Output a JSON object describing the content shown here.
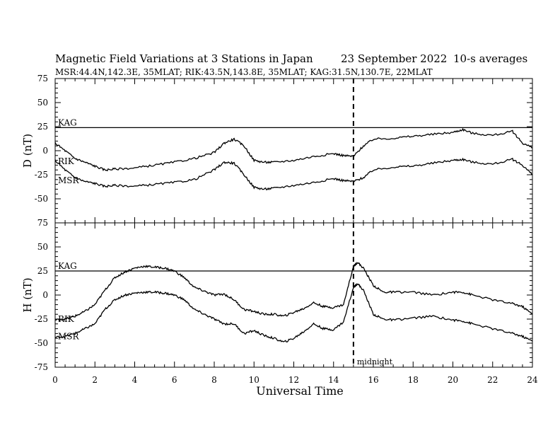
{
  "title": "Magnetic Field Variations at 3 Stations in Japan",
  "date_label": "23 September 2022",
  "avg_label": "10-s averages",
  "subtitle": "MSR:44.4N,142.3E, 35MLAT;  RIK:43.5N,143.8E, 35MLAT;  KAG:31.5N,130.7E, 22MLAT",
  "chart_data": [
    {
      "type": "line",
      "ylabel": "D (nT)",
      "ylim": [
        -75,
        75
      ],
      "yticks": [
        "75",
        "50",
        "25",
        "0",
        "-25",
        "-50",
        "-75"
      ],
      "xlim": [
        0,
        24
      ],
      "series": [
        {
          "name": "KAG",
          "x": [
            0,
            24
          ],
          "y": [
            24,
            24
          ]
        },
        {
          "name": "RIK",
          "x": [
            0,
            0.5,
            1,
            1.5,
            2,
            2.5,
            3,
            4,
            5,
            6,
            7,
            8,
            8.5,
            9,
            9.5,
            10,
            10.5,
            11,
            12,
            13,
            14,
            14.5,
            15,
            15.5,
            16,
            17,
            18,
            19,
            20,
            20.5,
            21,
            22,
            23,
            23.5,
            24
          ],
          "y": [
            8,
            0,
            -8,
            -12,
            -16,
            -20,
            -19,
            -18,
            -15,
            -12,
            -8,
            -2,
            8,
            12,
            5,
            -10,
            -12,
            -12,
            -10,
            -6,
            -3,
            -5,
            -6,
            5,
            12,
            13,
            15,
            17,
            19,
            22,
            18,
            16,
            20,
            8,
            3
          ]
        },
        {
          "name": "MSR",
          "x": [
            0,
            0.5,
            1,
            1.5,
            2,
            2.5,
            3,
            4,
            5,
            6,
            7,
            8,
            8.5,
            9,
            9.5,
            10,
            10.5,
            11,
            12,
            13,
            14,
            14.5,
            15,
            15.5,
            16,
            17,
            18,
            19,
            20,
            20.5,
            21,
            22,
            23,
            23.5,
            24
          ],
          "y": [
            -10,
            -20,
            -28,
            -32,
            -34,
            -37,
            -36,
            -37,
            -35,
            -33,
            -30,
            -20,
            -12,
            -13,
            -25,
            -38,
            -40,
            -39,
            -36,
            -33,
            -29,
            -31,
            -32,
            -28,
            -20,
            -17,
            -16,
            -13,
            -10,
            -9,
            -12,
            -14,
            -9,
            -15,
            -25
          ]
        }
      ]
    },
    {
      "type": "line",
      "ylabel": "H (nT)",
      "ylim": [
        -75,
        75
      ],
      "yticks": [
        "75",
        "50",
        "25",
        "0",
        "-25",
        "-50",
        "-75"
      ],
      "xlim": [
        0,
        24
      ],
      "xticks": [
        "0",
        "2",
        "4",
        "6",
        "8",
        "10",
        "12",
        "14",
        "16",
        "18",
        "20",
        "22",
        "24"
      ],
      "xlabel": "Universal Time",
      "series": [
        {
          "name": "KAG",
          "x": [
            0,
            24
          ],
          "y": [
            25,
            25
          ]
        },
        {
          "name": "RIK",
          "x": [
            0,
            0.5,
            1,
            1.5,
            2,
            2.5,
            3,
            3.5,
            4,
            4.5,
            5,
            5.5,
            6,
            6.5,
            7,
            7.5,
            8,
            8.5,
            9,
            9.5,
            10,
            10.5,
            11,
            11.5,
            12,
            12.5,
            13,
            13.5,
            14,
            14.5,
            15,
            15.2,
            15.5,
            16,
            16.5,
            17,
            18,
            19,
            20,
            20.5,
            21,
            22,
            23,
            23.5,
            24
          ],
          "y": [
            -26,
            -25,
            -22,
            -17,
            -10,
            5,
            18,
            24,
            28,
            30,
            29,
            28,
            25,
            18,
            8,
            4,
            0,
            1,
            -5,
            -15,
            -17,
            -20,
            -20,
            -22,
            -18,
            -14,
            -8,
            -12,
            -13,
            -10,
            30,
            34,
            28,
            10,
            3,
            3,
            3,
            0,
            3,
            3,
            0,
            -5,
            -9,
            -12,
            -20
          ]
        },
        {
          "name": "MSR",
          "x": [
            0,
            0.5,
            1,
            1.5,
            2,
            2.5,
            3,
            3.5,
            4,
            4.5,
            5,
            5.5,
            6,
            6.5,
            7,
            7.5,
            8,
            8.5,
            9,
            9.5,
            10,
            10.5,
            11,
            11.5,
            12,
            12.5,
            13,
            13.5,
            14,
            14.5,
            15,
            15.2,
            15.5,
            16,
            16.5,
            17,
            18,
            19,
            20,
            20.5,
            21,
            22,
            23,
            23.5,
            24
          ],
          "y": [
            -44,
            -43,
            -40,
            -35,
            -30,
            -15,
            -5,
            0,
            2,
            3,
            3,
            2,
            0,
            -5,
            -15,
            -20,
            -25,
            -30,
            -30,
            -40,
            -37,
            -42,
            -45,
            -49,
            -45,
            -38,
            -30,
            -35,
            -36,
            -28,
            8,
            12,
            5,
            -20,
            -25,
            -26,
            -24,
            -22,
            -26,
            -27,
            -30,
            -35,
            -40,
            -43,
            -48
          ]
        }
      ],
      "annotations": [
        {
          "text": "midnight",
          "x": 15
        }
      ]
    }
  ],
  "midnight_ut": 15
}
